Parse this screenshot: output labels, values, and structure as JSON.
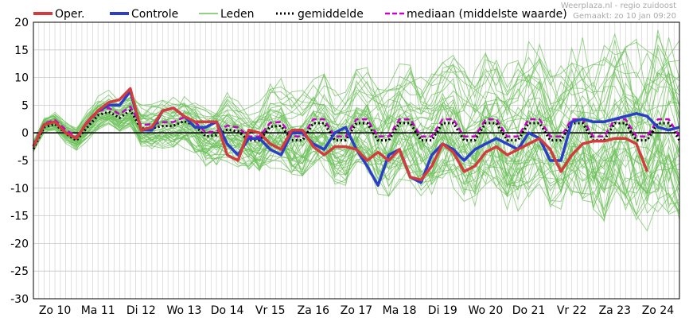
{
  "legend": {
    "oper": "Oper.",
    "controle": "Controle",
    "leden": "Leden",
    "gemiddelde": "gemiddelde",
    "mediaan": "mediaan (middelste waarde)"
  },
  "credit": {
    "line1": "Weerplaza.nl - regio zuidoost",
    "line2": "Gemaakt: zo 10 jan 09:20"
  },
  "colors": {
    "oper": "#d23c3c",
    "controle": "#2a3ec8",
    "leden": "#6cc25a",
    "gemiddelde": "#000000",
    "mediaan": "#c800c8",
    "grid": "#d4d4d4"
  },
  "chart_data": {
    "type": "line",
    "title": "",
    "xlabel": "",
    "ylabel": "",
    "ylim": [
      -30,
      20
    ],
    "yticks": [
      20,
      15,
      10,
      5,
      0,
      -5,
      -10,
      -15,
      -20,
      -25,
      -30
    ],
    "xlim": [
      0,
      120
    ],
    "day_labels": [
      "Zo 10",
      "Ma 11",
      "Di 12",
      "Wo 13",
      "Do 14",
      "Vr 15",
      "Za 16",
      "Zo 17",
      "Ma 18",
      "Di 19",
      "Wo 20",
      "Do 21",
      "Vr 22",
      "Za 23",
      "Zo 24"
    ],
    "grid": true,
    "legend_position": "top",
    "series": [
      {
        "name": "Oper.",
        "x": [
          0,
          2,
          4,
          6,
          8,
          10,
          12,
          14,
          16,
          18,
          20,
          22,
          24,
          26,
          28,
          30,
          32,
          34,
          36,
          38,
          40,
          42,
          44,
          46,
          48,
          50,
          52,
          54,
          56,
          58,
          60,
          62,
          64,
          66,
          68,
          70,
          72,
          74,
          76,
          78,
          80,
          82,
          84,
          86,
          88,
          90,
          92,
          94,
          96,
          98,
          100,
          102,
          104,
          106,
          108,
          110,
          112,
          114
        ],
        "values": [
          -2.5,
          1.5,
          2,
          0,
          -1,
          2,
          4,
          5.5,
          6,
          8,
          0.5,
          1,
          4,
          4.5,
          3,
          2,
          2,
          2,
          -4,
          -5,
          0.5,
          0,
          -2,
          -3,
          0.5,
          0.5,
          -2.5,
          -4,
          -2.5,
          -2.5,
          -3,
          -5,
          -3.5,
          -5,
          -3,
          -8,
          -8.5,
          -6,
          -2,
          -3.5,
          -7,
          -6,
          -3.5,
          -2.5,
          -4,
          -3,
          -2,
          -1,
          -3,
          -7,
          -4,
          -2,
          -1.5,
          -1.5,
          -1,
          -1,
          -2,
          -7
        ]
      },
      {
        "name": "Controle",
        "x": [
          0,
          2,
          4,
          6,
          8,
          10,
          12,
          14,
          16,
          18,
          20,
          22,
          24,
          26,
          28,
          30,
          32,
          34,
          36,
          38,
          40,
          42,
          44,
          46,
          48,
          50,
          52,
          54,
          56,
          58,
          60,
          62,
          64,
          66,
          68,
          70,
          72,
          74,
          76,
          78,
          80,
          82,
          84,
          86,
          88,
          90,
          92,
          94,
          96,
          98,
          100,
          102,
          104,
          106,
          108,
          110,
          112,
          114,
          116,
          118,
          120
        ],
        "values": [
          -2.5,
          1.5,
          2,
          0,
          -1,
          2,
          4,
          5,
          5,
          7.5,
          0.5,
          0.5,
          4,
          4.5,
          3,
          1,
          1,
          2,
          -2,
          -4,
          -1,
          -1,
          -3,
          -4,
          0,
          0,
          -2,
          -3,
          0,
          1,
          -3,
          -6,
          -9.5,
          -4,
          -3,
          -8,
          -9,
          -4,
          -2,
          -3,
          -5,
          -3,
          -2,
          -1,
          -2,
          -3,
          0,
          -1,
          -5,
          -5,
          2,
          2.5,
          2,
          2,
          2.5,
          3,
          3.5,
          3,
          1,
          0.5,
          1
        ]
      }
    ]
  }
}
